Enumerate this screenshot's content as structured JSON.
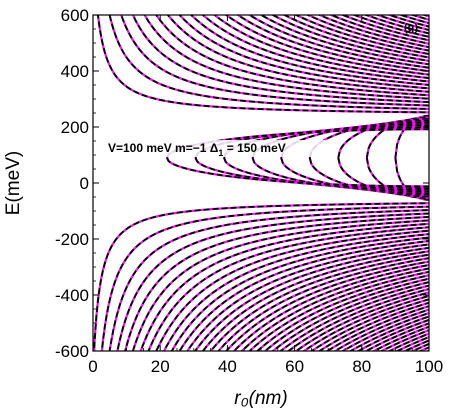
{
  "chart_data": {
    "type": "line",
    "title": "",
    "panel_label": "(g)",
    "xlabel": "r₀(nm)",
    "ylabel": "E(meV)",
    "xlim": [
      0,
      100
    ],
    "ylim": [
      -600,
      600
    ],
    "xticks": [
      "0",
      "20",
      "40",
      "60",
      "80",
      "100"
    ],
    "yticks": [
      "600",
      "400",
      "200",
      "0",
      "-200",
      "-400",
      "-600"
    ],
    "annotation": {
      "text_main": "V=100 meV m=−1  Δ",
      "subscript": "1",
      "text_tail": " = 150 meV"
    },
    "grid": false,
    "legend": "none",
    "series": [
      {
        "style": "solid",
        "color": "#e619e6",
        "levels_shown": 45
      },
      {
        "style": "dashed",
        "color": "#000000",
        "levels_shown": 45
      }
    ],
    "band_edges": {
      "upper_meV": 240,
      "lower_meV": -60
    },
    "colors": {
      "solid": "#e619e6",
      "dashed": "#000000",
      "frame": "#000000"
    }
  }
}
